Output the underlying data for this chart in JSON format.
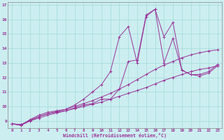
{
  "xlabel": "Windchill (Refroidissement éolien,°C)",
  "background_color": "#cceef0",
  "grid_color": "#aadddd",
  "line_color": "#993399",
  "xlim": [
    -0.5,
    23.5
  ],
  "ylim": [
    8.5,
    17.2
  ],
  "yticks": [
    9,
    10,
    11,
    12,
    13,
    14,
    15,
    16,
    17
  ],
  "xticks": [
    0,
    1,
    2,
    3,
    4,
    5,
    6,
    7,
    8,
    9,
    10,
    11,
    12,
    13,
    14,
    15,
    16,
    17,
    18,
    19,
    20,
    21,
    22,
    23
  ],
  "line1_x": [
    0,
    1,
    2,
    3,
    4,
    5,
    6,
    7,
    8,
    9,
    10,
    11,
    12,
    13,
    14,
    15,
    16,
    17,
    18,
    19,
    20,
    21,
    22,
    23
  ],
  "line1_y": [
    8.8,
    8.7,
    9.1,
    9.4,
    9.6,
    9.7,
    9.8,
    10.1,
    10.5,
    11.0,
    11.5,
    12.4,
    14.8,
    15.5,
    13.0,
    16.2,
    16.7,
    13.0,
    14.7,
    12.5,
    12.2,
    12.1,
    12.3,
    12.8
  ],
  "line2_x": [
    0,
    1,
    2,
    3,
    4,
    5,
    6,
    7,
    8,
    9,
    10,
    11,
    12,
    13,
    14,
    15,
    16,
    17,
    18,
    19,
    20,
    21,
    22,
    23
  ],
  "line2_y": [
    8.8,
    8.7,
    9.0,
    9.3,
    9.5,
    9.6,
    9.7,
    9.9,
    10.1,
    10.2,
    10.5,
    10.5,
    11.2,
    13.1,
    13.2,
    16.3,
    16.7,
    14.8,
    15.8,
    12.5,
    12.2,
    12.2,
    12.4,
    12.9
  ],
  "line3_x": [
    0,
    1,
    2,
    3,
    4,
    5,
    6,
    7,
    8,
    9,
    10,
    11,
    12,
    13,
    14,
    15,
    16,
    17,
    18,
    19,
    20,
    21,
    22,
    23
  ],
  "line3_y": [
    8.8,
    8.75,
    9.05,
    9.3,
    9.5,
    9.65,
    9.8,
    10.0,
    10.2,
    10.4,
    10.65,
    10.9,
    11.2,
    11.5,
    11.85,
    12.2,
    12.55,
    12.85,
    13.1,
    13.35,
    13.55,
    13.7,
    13.82,
    13.9
  ],
  "line4_x": [
    0,
    1,
    2,
    3,
    4,
    5,
    6,
    7,
    8,
    9,
    10,
    11,
    12,
    13,
    14,
    15,
    16,
    17,
    18,
    19,
    20,
    21,
    22,
    23
  ],
  "line4_y": [
    8.8,
    8.75,
    9.0,
    9.2,
    9.4,
    9.55,
    9.7,
    9.85,
    10.0,
    10.15,
    10.3,
    10.5,
    10.7,
    10.9,
    11.1,
    11.3,
    11.55,
    11.8,
    12.0,
    12.2,
    12.4,
    12.55,
    12.65,
    12.8
  ]
}
